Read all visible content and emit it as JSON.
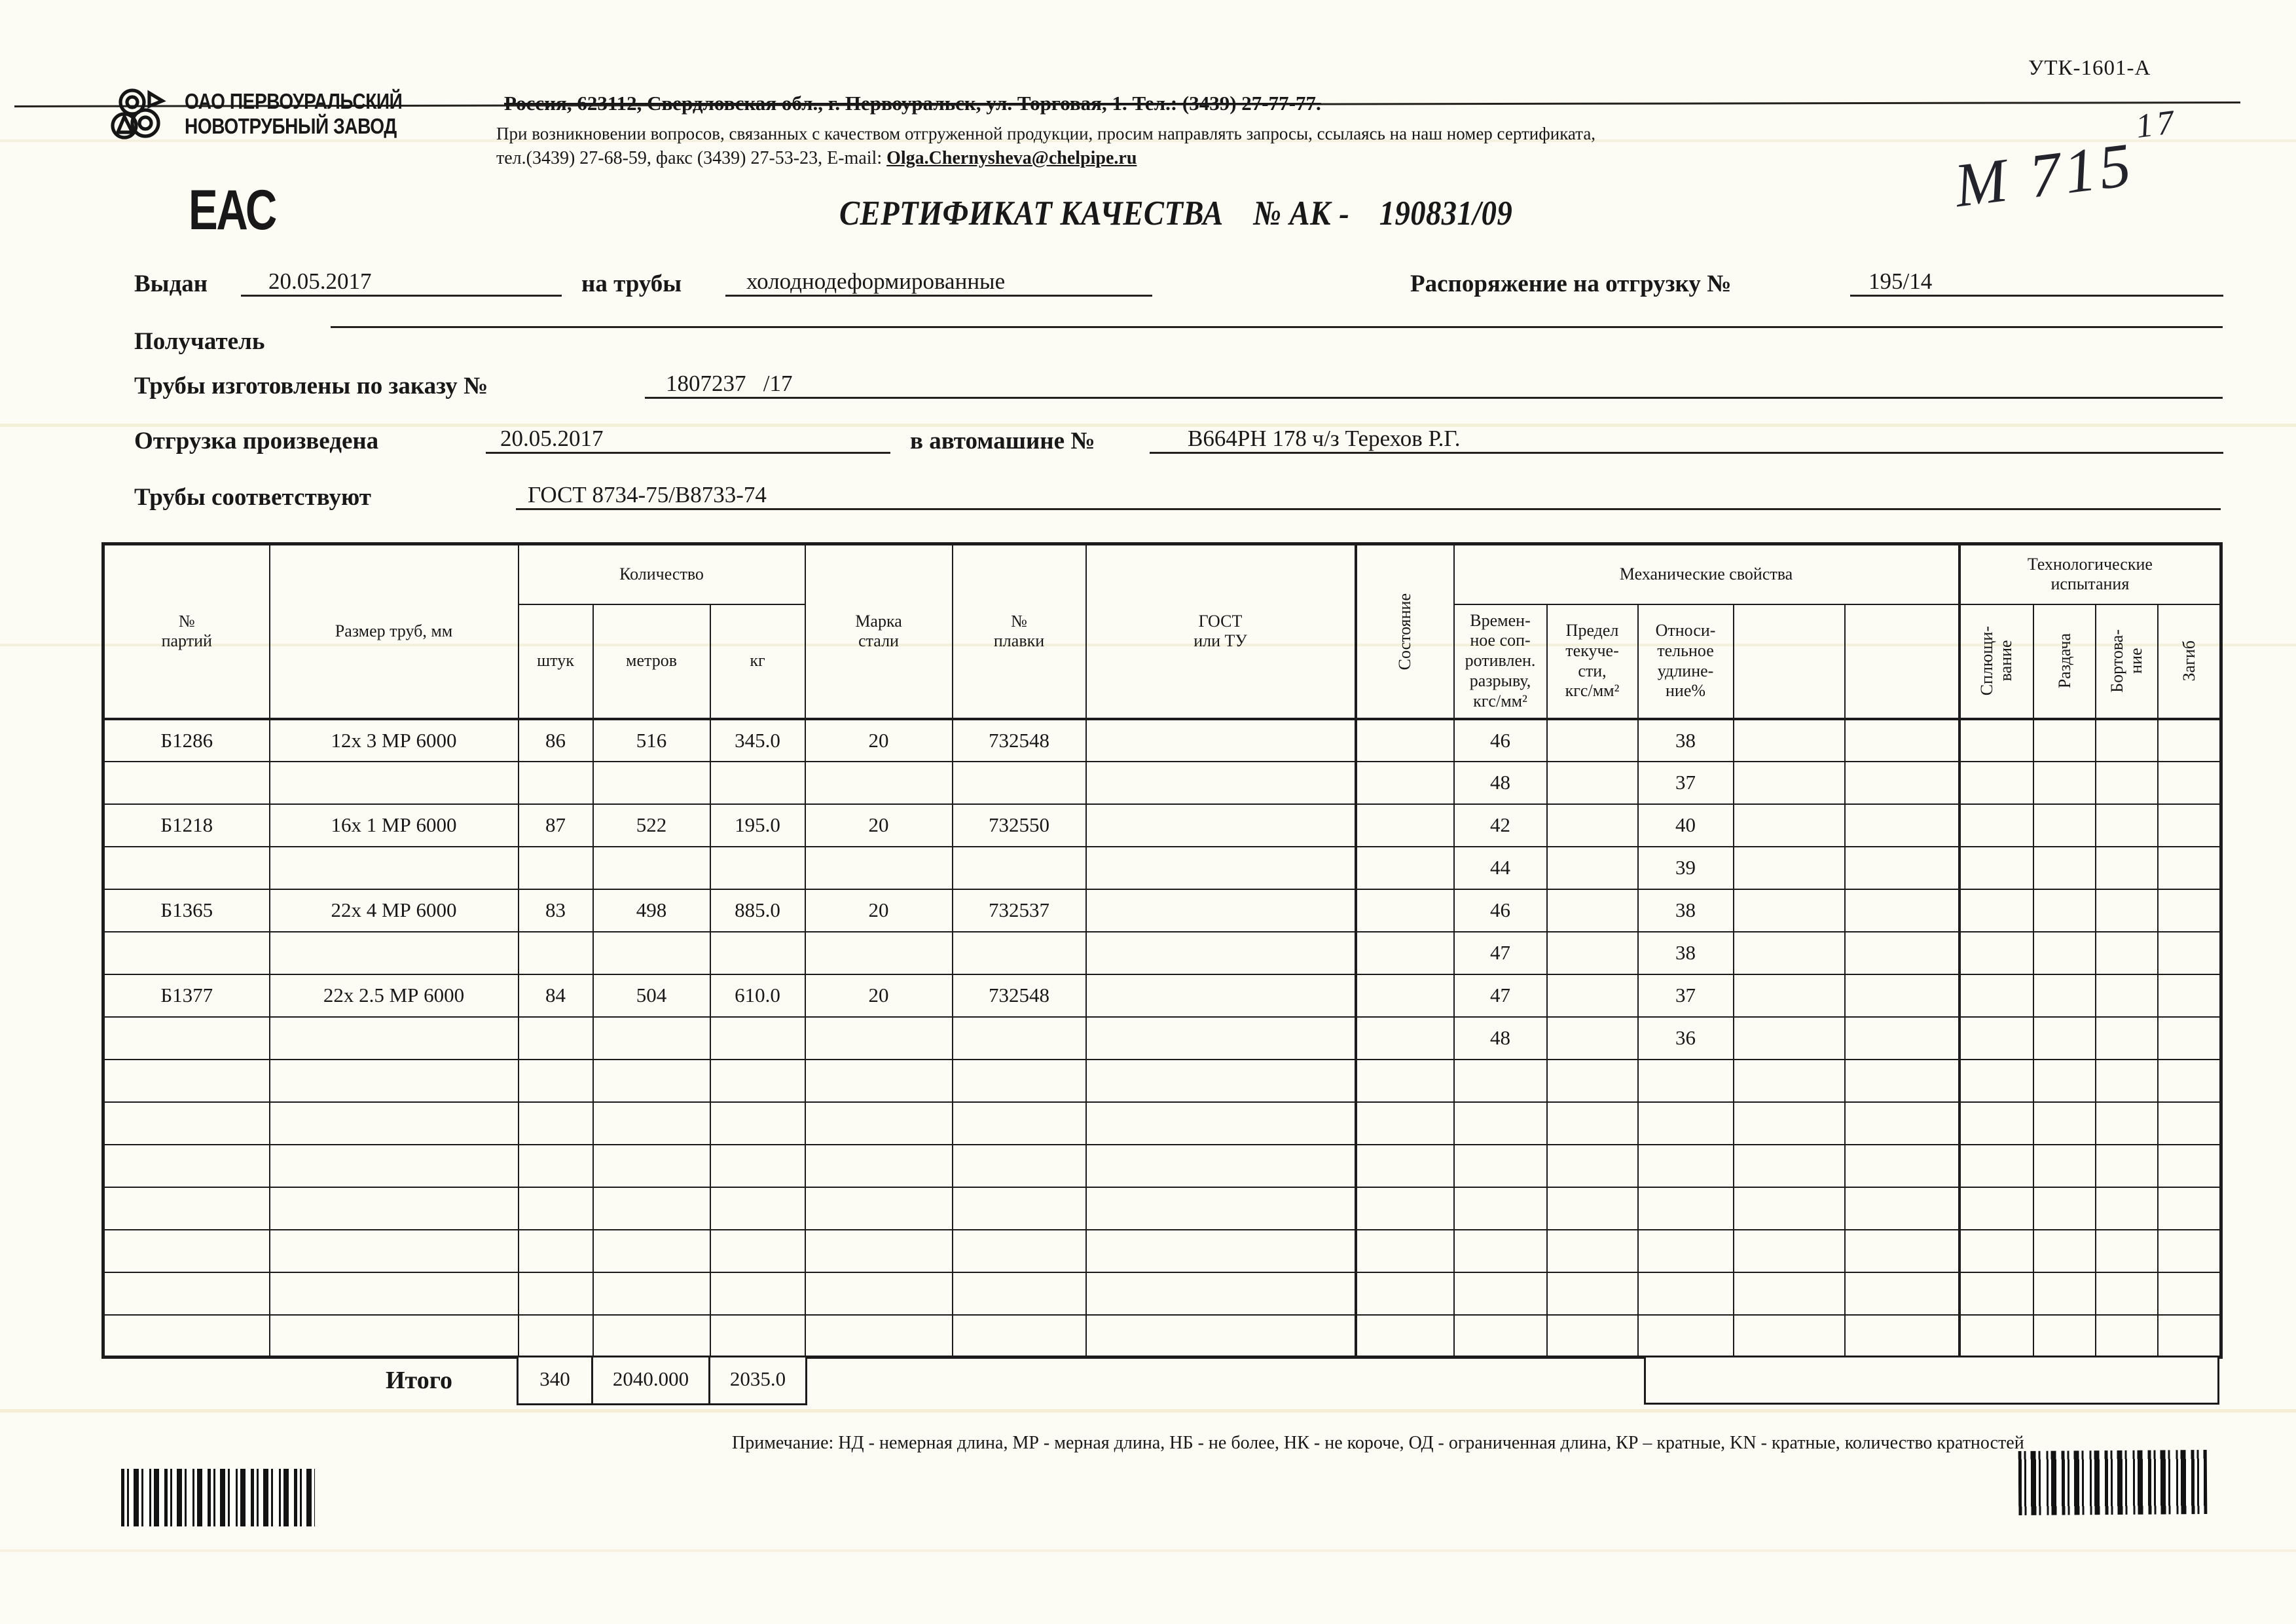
{
  "form_code": "УТК-1601-А",
  "header": {
    "company_line1": "ОАО ПЕРВОУРАЛЬСКИЙ",
    "company_line2": "НОВОТРУБНЫЙ  ЗАВОД",
    "address_line": "Россия, 623112, Свердловская обл., г. Первоуральск, ул. Торговая, 1. Тел.: (3439) 27-77-77.",
    "quality_note": "При возникновении вопросов, связанных с качеством отгруженной продукции, просим направлять запросы, ссылаясь на наш номер сертификата,",
    "phone_fax_prefix": "тел.(3439) 27-68-59, факс (3439) 27-53-23,  E-mail: ",
    "email": "Olga.Chernysheva@chelpipe.ru",
    "eac_mark": "ЕАС"
  },
  "title": {
    "label": "СЕРТИФИКАТ КАЧЕСТВА",
    "number_sign": "№  АК -",
    "number": "190831/09"
  },
  "handwritten": {
    "text": "М 715",
    "sup": "17"
  },
  "fields": {
    "issued_label": "Выдан",
    "issued_value": "20.05.2017",
    "pipes_label": "на трубы",
    "pipes_value": "холоднодеформированные",
    "order_ship_label": "Распоряжение на отгрузку №",
    "order_ship_value": "195/14",
    "recipient_label": "Получатель",
    "recipient_value": "",
    "made_by_order_label": "Трубы изготовлены по заказу №",
    "made_by_order_value": "1807237   /17",
    "shipped_label": "Отгрузка произведена",
    "shipped_value": "20.05.2017",
    "truck_label": "в автомашине №",
    "truck_value": "В664РН 178 ч/з Терехов Р.Г.",
    "conform_label": "Трубы соответствуют",
    "conform_value": "ГОСТ 8734-75/В8733-74"
  },
  "table": {
    "headers": {
      "batch_no": "№\nпартий",
      "size": "Размер труб, мм",
      "quantity_group": "Количество",
      "pieces": "штук",
      "meters": "метров",
      "kg": "кг",
      "steel_grade": "Марка\nстали",
      "heat_no": "№\nплавки",
      "gost": "ГОСТ\nили ТУ",
      "condition": "Состояние",
      "mech_group": "Механические свойства",
      "tensile": "Времен-\nное соп-\nротивлен.\nразрыву,\nкгс/мм²",
      "yield_strength": "Предел\nтекуче-\nсти,\nкгс/мм²",
      "elongation": "Относи-\nтельное\nудлине-\nние%",
      "tech_group": "Технологические\nиспытания",
      "flattening": "Сплющи-\nвание",
      "expansion": "Раздача",
      "flanging": "Бортова-\nние",
      "bend": "Загиб"
    },
    "rows": [
      [
        "Б1286",
        "12х 3 МР 6000",
        "86",
        "516",
        "345.0",
        "20",
        "732548",
        "",
        "",
        "46",
        "",
        "38",
        "",
        "",
        "",
        "",
        "",
        ""
      ],
      [
        "",
        "",
        "",
        "",
        "",
        "",
        "",
        "",
        "",
        "48",
        "",
        "37",
        "",
        "",
        "",
        "",
        "",
        ""
      ],
      [
        "Б1218",
        "16х 1 МР 6000",
        "87",
        "522",
        "195.0",
        "20",
        "732550",
        "",
        "",
        "42",
        "",
        "40",
        "",
        "",
        "",
        "",
        "",
        ""
      ],
      [
        "",
        "",
        "",
        "",
        "",
        "",
        "",
        "",
        "",
        "44",
        "",
        "39",
        "",
        "",
        "",
        "",
        "",
        ""
      ],
      [
        "Б1365",
        "22х 4 МР 6000",
        "83",
        "498",
        "885.0",
        "20",
        "732537",
        "",
        "",
        "46",
        "",
        "38",
        "",
        "",
        "",
        "",
        "",
        ""
      ],
      [
        "",
        "",
        "",
        "",
        "",
        "",
        "",
        "",
        "",
        "47",
        "",
        "38",
        "",
        "",
        "",
        "",
        "",
        ""
      ],
      [
        "Б1377",
        "22х 2.5 МР 6000",
        "84",
        "504",
        "610.0",
        "20",
        "732548",
        "",
        "",
        "47",
        "",
        "37",
        "",
        "",
        "",
        "",
        "",
        ""
      ],
      [
        "",
        "",
        "",
        "",
        "",
        "",
        "",
        "",
        "",
        "48",
        "",
        "36",
        "",
        "",
        "",
        "",
        "",
        ""
      ],
      [
        "",
        "",
        "",
        "",
        "",
        "",
        "",
        "",
        "",
        "",
        "",
        "",
        "",
        "",
        "",
        "",
        "",
        ""
      ],
      [
        "",
        "",
        "",
        "",
        "",
        "",
        "",
        "",
        "",
        "",
        "",
        "",
        "",
        "",
        "",
        "",
        "",
        ""
      ],
      [
        "",
        "",
        "",
        "",
        "",
        "",
        "",
        "",
        "",
        "",
        "",
        "",
        "",
        "",
        "",
        "",
        "",
        ""
      ],
      [
        "",
        "",
        "",
        "",
        "",
        "",
        "",
        "",
        "",
        "",
        "",
        "",
        "",
        "",
        "",
        "",
        "",
        ""
      ],
      [
        "",
        "",
        "",
        "",
        "",
        "",
        "",
        "",
        "",
        "",
        "",
        "",
        "",
        "",
        "",
        "",
        "",
        ""
      ],
      [
        "",
        "",
        "",
        "",
        "",
        "",
        "",
        "",
        "",
        "",
        "",
        "",
        "",
        "",
        "",
        "",
        "",
        ""
      ],
      [
        "",
        "",
        "",
        "",
        "",
        "",
        "",
        "",
        "",
        "",
        "",
        "",
        "",
        "",
        "",
        "",
        "",
        ""
      ]
    ],
    "totals": {
      "label": "Итого",
      "pieces": "340",
      "meters": "2040.000",
      "kg": "2035.0"
    }
  },
  "note": "Примечание: НД - немерная длина, МР - мерная длина, НБ - не более, НК - не короче, ОД - ограниченная длина, КР – кратные, KN - кратные, количество кратностей"
}
